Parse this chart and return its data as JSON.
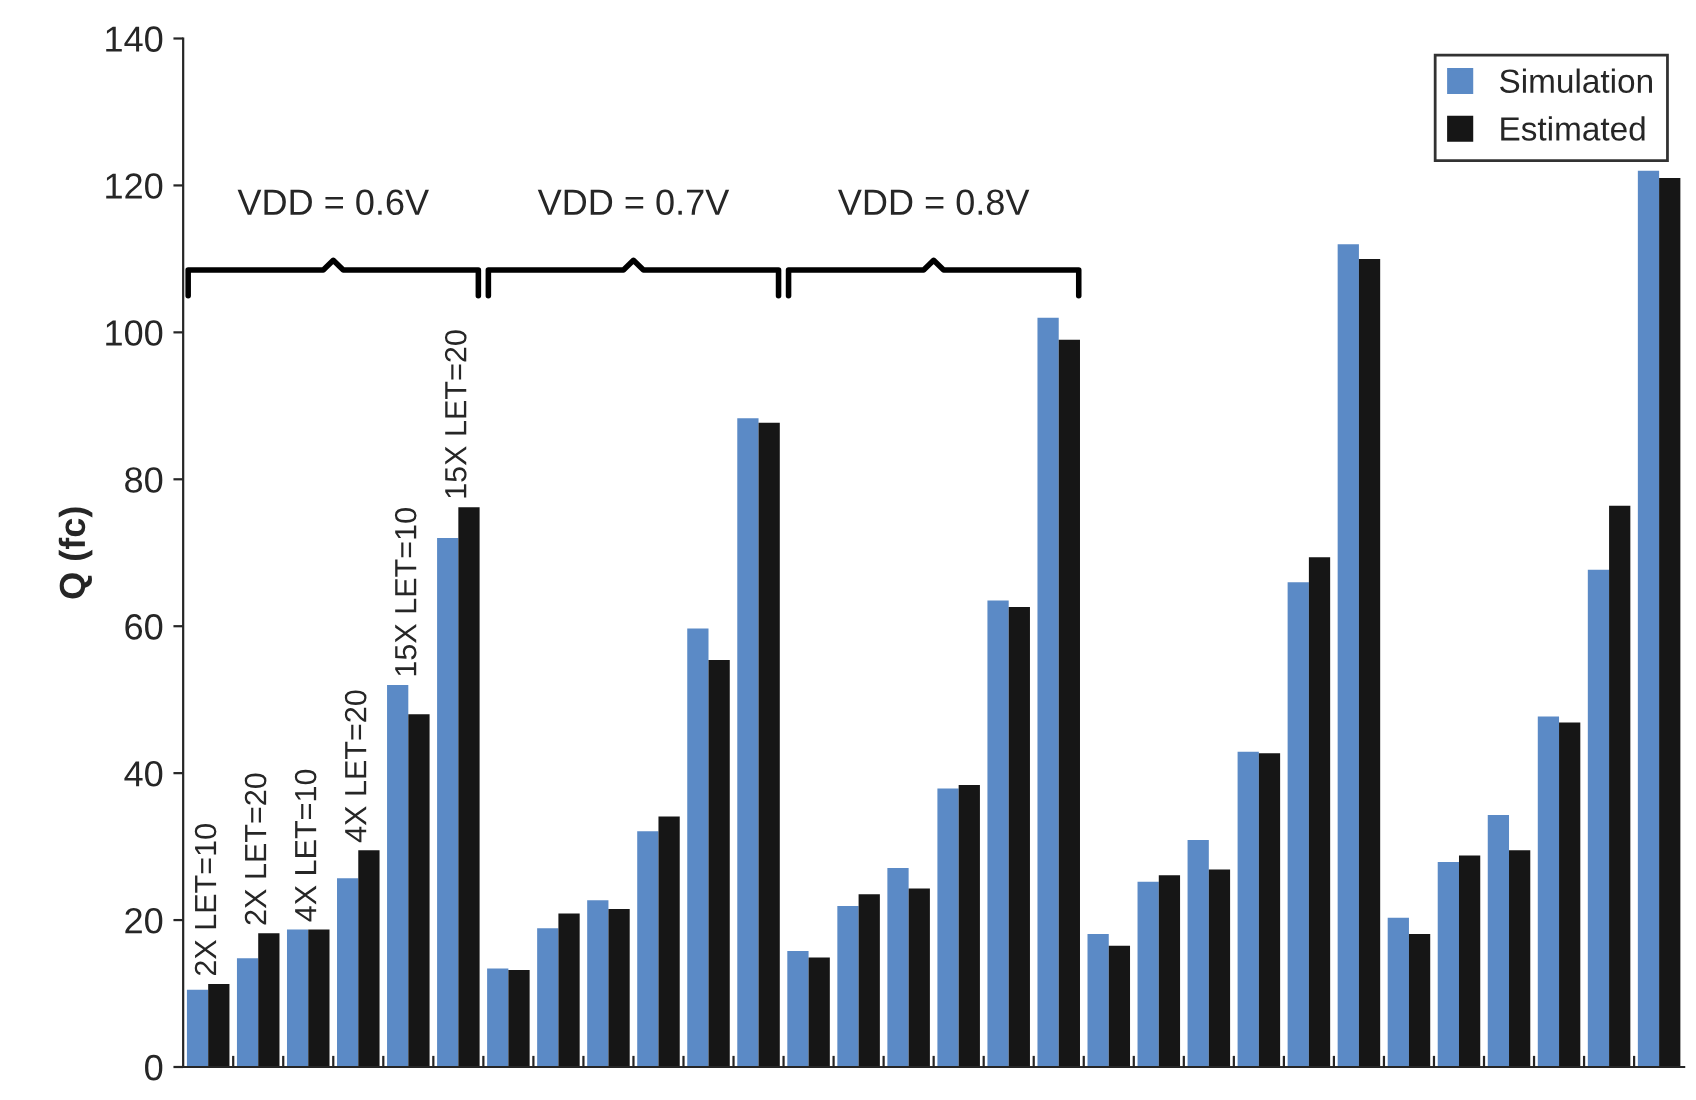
{
  "chart_data": {
    "type": "bar",
    "ylabel": "Q (fc)",
    "categories": [
      null,
      null,
      null,
      null,
      null,
      null,
      null,
      null,
      null,
      null,
      null,
      null,
      null,
      null,
      null,
      null,
      null,
      null,
      null,
      null,
      null,
      null,
      null,
      null,
      null,
      null,
      null,
      null,
      null,
      null
    ],
    "series": [
      {
        "name": "Simulation",
        "color": "#5b8ac6",
        "values": [
          10.5,
          14.8,
          18.7,
          25.7,
          52,
          72,
          13.4,
          18.9,
          22.7,
          32.1,
          59.7,
          88.3,
          15.8,
          21.9,
          27.1,
          37.9,
          63.5,
          102,
          18.1,
          25.2,
          30.9,
          42.9,
          66,
          112,
          20.3,
          27.9,
          34.3,
          47.7,
          67.7,
          122
        ]
      },
      {
        "name": "Estimated",
        "color": "#161616",
        "values": [
          11.3,
          18.2,
          18.7,
          29.5,
          48,
          76.2,
          13.2,
          20.9,
          21.5,
          34.1,
          55.4,
          87.7,
          14.9,
          23.5,
          24.3,
          38.4,
          62.6,
          99,
          16.5,
          26.1,
          26.9,
          42.7,
          69.4,
          110,
          18.1,
          28.8,
          29.5,
          46.9,
          76.4,
          121
        ]
      }
    ],
    "annotations": [
      "2X LET=10",
      "2X LET=20",
      "4X LET=10",
      "4X LET=20",
      "15X LET=10",
      "15X LET=20",
      "VDD = 0.6V",
      "VDD = 0.7V",
      "VDD = 0.8V"
    ],
    "ylim": [
      0,
      140
    ],
    "yticks": [
      0,
      20,
      40,
      60,
      80,
      100,
      120,
      140
    ],
    "legend": "top right",
    "grid": false
  }
}
